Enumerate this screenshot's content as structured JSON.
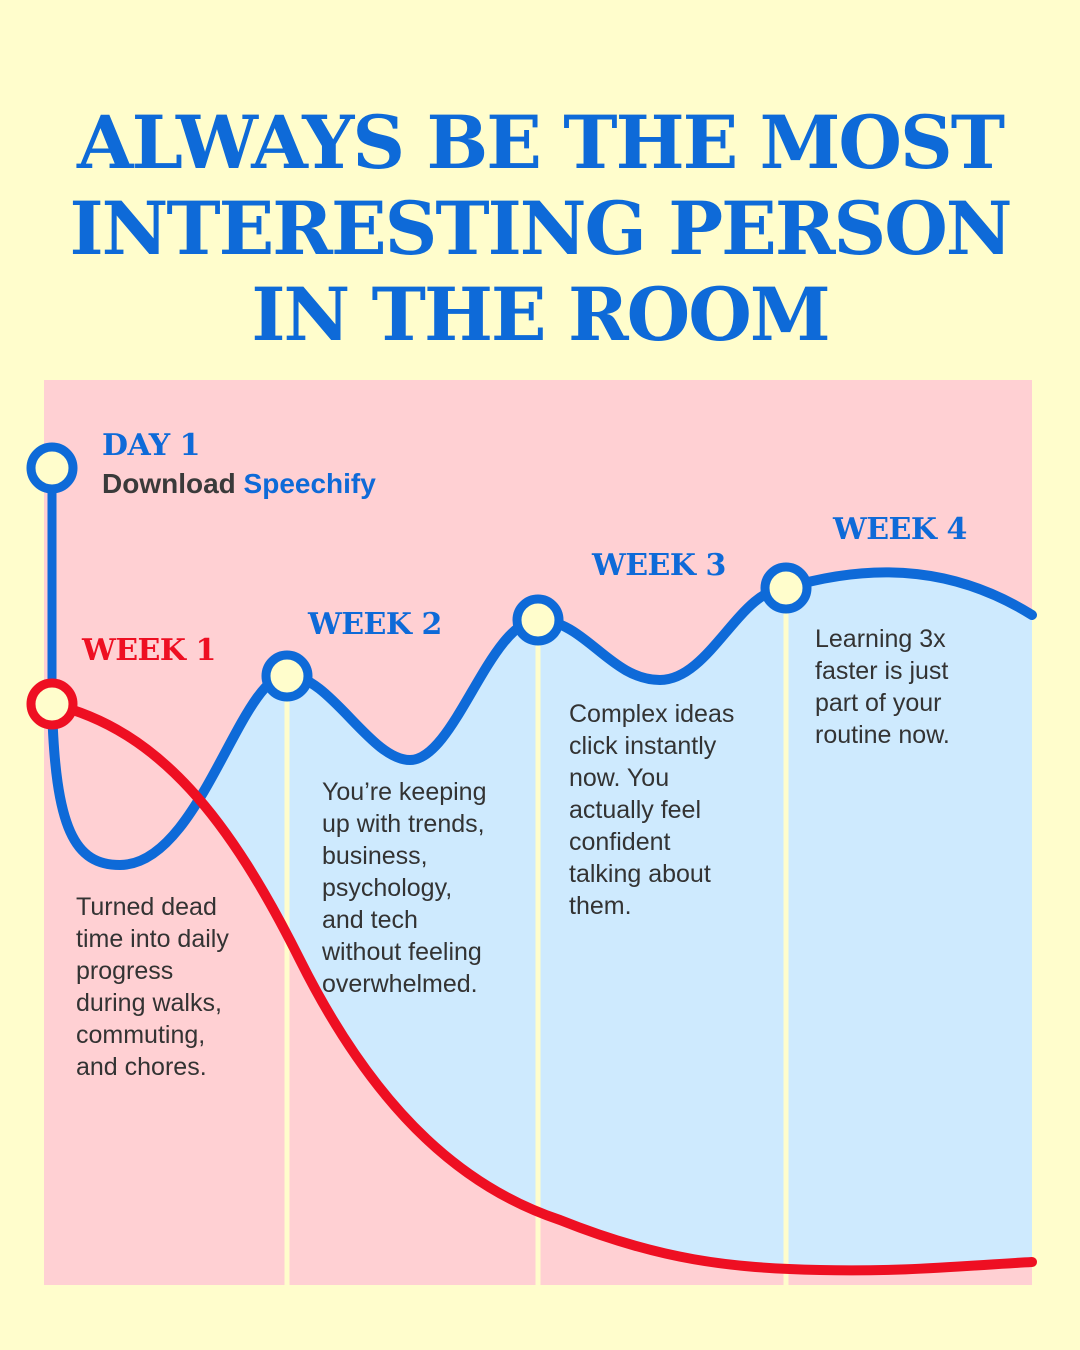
{
  "headline": {
    "lines": [
      "ALWAYS BE THE MOST",
      "INTERESTING PERSON",
      "IN THE ROOM"
    ]
  },
  "day1": {
    "label": "DAY 1",
    "action": "Download",
    "brand": "Speechify"
  },
  "weeks": [
    {
      "label": "WEEK 1",
      "desc": [
        "Turned dead",
        "time into daily",
        "progress",
        "during walks,",
        "commuting,",
        "and chores."
      ]
    },
    {
      "label": "WEEK 2",
      "desc": [
        "You’re keeping",
        "up with trends,",
        "business,",
        "psychology,",
        "and tech",
        "without feeling",
        "overwhelmed."
      ]
    },
    {
      "label": "WEEK 3",
      "desc": [
        "Complex ideas",
        "click instantly",
        "now. You",
        "actually feel",
        "confident",
        "talking about",
        "them."
      ]
    },
    {
      "label": "WEEK 4",
      "desc": [
        "Learning 3x",
        "faster is just",
        "part of your",
        "routine now."
      ]
    }
  ],
  "colors": {
    "background": "#FFFDCC",
    "blue": "#0E6AD8",
    "red": "#EE0F22",
    "blue_fill": "#CEEAFE",
    "red_fill": "#FFD0D3",
    "text": "#333333"
  }
}
